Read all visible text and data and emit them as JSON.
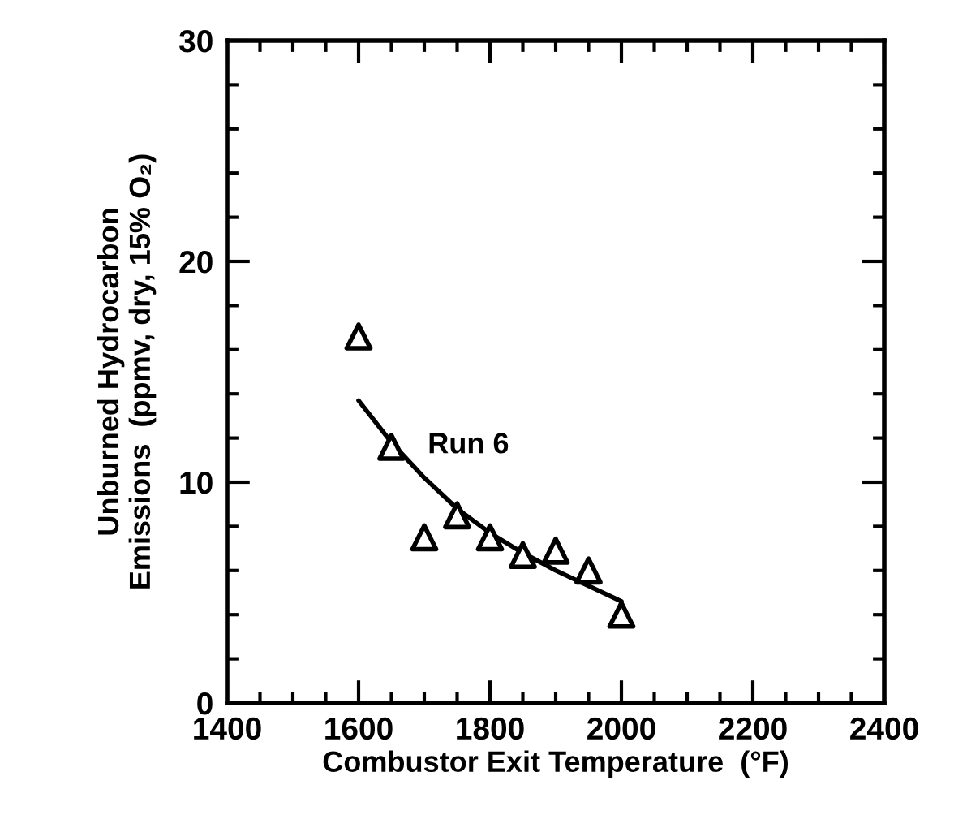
{
  "chart_data": {
    "type": "scatter",
    "xlabel": "Combustor Exit Temperature  (°F)",
    "ylabel": "Unburned Hydrocarbon\nEmissions  (ppmv, dry, 15% O₂)",
    "xlim": [
      1400,
      2400
    ],
    "xticks": [
      1400,
      1600,
      1800,
      2000,
      2200,
      2400
    ],
    "ylim": [
      0,
      30
    ],
    "yticks": [
      0,
      10,
      20,
      30
    ],
    "grid": false,
    "legend": false,
    "series": [
      {
        "marker": "triangle",
        "color": "#000000",
        "x": [
          1600,
          1650,
          1700,
          1750,
          1800,
          1850,
          1900,
          1950,
          2000
        ],
        "values": [
          16.6,
          11.6,
          7.5,
          8.5,
          7.5,
          6.7,
          6.9,
          6.0,
          4.0
        ]
      },
      {
        "type": "line",
        "name": "Run 6",
        "marker": "none",
        "line_style": "solid",
        "color": "#000000",
        "x": [
          1600,
          1650,
          1700,
          1750,
          1800,
          1850,
          1900,
          1950,
          2000
        ],
        "values": [
          13.7,
          11.8,
          10.2,
          8.8,
          7.7,
          6.8,
          6.0,
          5.3,
          4.6
        ]
      }
    ]
  }
}
